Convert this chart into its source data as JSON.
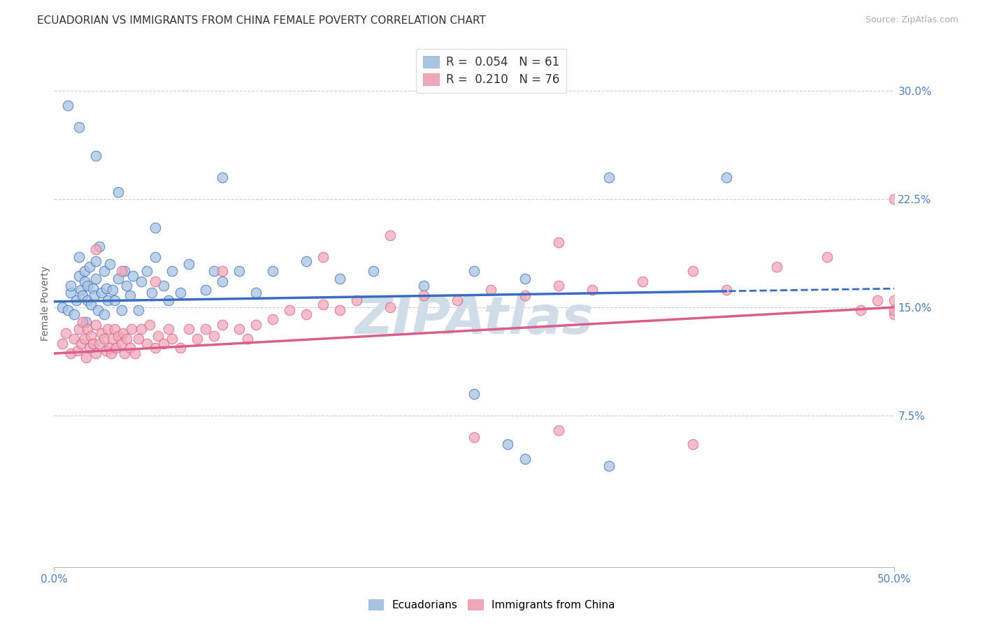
{
  "title": "ECUADORIAN VS IMMIGRANTS FROM CHINA FEMALE POVERTY CORRELATION CHART",
  "source": "Source: ZipAtlas.com",
  "ylabel": "Female Poverty",
  "xlim": [
    0.0,
    0.5
  ],
  "ylim": [
    -0.03,
    0.335
  ],
  "legend1_label": "R =  0.054   N = 61",
  "legend2_label": "R =  0.210   N = 76",
  "scatter_blue_color": "#a8c4e0",
  "scatter_pink_color": "#f0a8b8",
  "line_blue_color": "#3a6cbf",
  "line_pink_color": "#d95f8a",
  "watermark": "ZIPAtlas",
  "watermark_color": "#d0dce8",
  "background_color": "#ffffff",
  "grid_color": "#cccccc",
  "title_color": "#333333",
  "axis_label_color": "#5080c0",
  "ecuadorians_x": [
    0.005,
    0.008,
    0.01,
    0.01,
    0.012,
    0.013,
    0.015,
    0.015,
    0.016,
    0.017,
    0.018,
    0.018,
    0.019,
    0.02,
    0.02,
    0.021,
    0.022,
    0.023,
    0.024,
    0.025,
    0.025,
    0.026,
    0.027,
    0.028,
    0.03,
    0.03,
    0.031,
    0.032,
    0.033,
    0.035,
    0.036,
    0.038,
    0.04,
    0.042,
    0.043,
    0.045,
    0.047,
    0.05,
    0.052,
    0.055,
    0.058,
    0.06,
    0.065,
    0.068,
    0.07,
    0.075,
    0.08,
    0.09,
    0.095,
    0.1,
    0.11,
    0.12,
    0.13,
    0.15,
    0.17,
    0.19,
    0.22,
    0.25,
    0.28,
    0.33,
    0.4
  ],
  "ecuadorians_y": [
    0.15,
    0.148,
    0.16,
    0.165,
    0.145,
    0.155,
    0.172,
    0.185,
    0.162,
    0.158,
    0.168,
    0.175,
    0.14,
    0.155,
    0.165,
    0.178,
    0.152,
    0.163,
    0.158,
    0.17,
    0.182,
    0.148,
    0.192,
    0.16,
    0.145,
    0.175,
    0.163,
    0.155,
    0.18,
    0.162,
    0.155,
    0.17,
    0.148,
    0.175,
    0.165,
    0.158,
    0.172,
    0.148,
    0.168,
    0.175,
    0.16,
    0.185,
    0.165,
    0.155,
    0.175,
    0.16,
    0.18,
    0.162,
    0.175,
    0.168,
    0.175,
    0.16,
    0.175,
    0.182,
    0.17,
    0.175,
    0.165,
    0.175,
    0.17,
    0.24,
    0.24
  ],
  "ecuadorians_y_outliers": [
    0.29,
    0.275,
    0.255,
    0.23,
    0.205,
    0.24,
    0.09,
    0.055,
    0.045,
    0.04
  ],
  "ecuadorians_x_outliers": [
    0.008,
    0.015,
    0.025,
    0.038,
    0.06,
    0.1,
    0.25,
    0.27,
    0.28,
    0.33
  ],
  "china_x": [
    0.005,
    0.007,
    0.01,
    0.012,
    0.014,
    0.015,
    0.016,
    0.017,
    0.018,
    0.019,
    0.02,
    0.021,
    0.022,
    0.023,
    0.025,
    0.025,
    0.027,
    0.028,
    0.03,
    0.031,
    0.032,
    0.033,
    0.034,
    0.035,
    0.036,
    0.037,
    0.038,
    0.04,
    0.041,
    0.042,
    0.043,
    0.045,
    0.046,
    0.048,
    0.05,
    0.052,
    0.055,
    0.057,
    0.06,
    0.062,
    0.065,
    0.068,
    0.07,
    0.075,
    0.08,
    0.085,
    0.09,
    0.095,
    0.1,
    0.11,
    0.115,
    0.12,
    0.13,
    0.14,
    0.15,
    0.16,
    0.17,
    0.18,
    0.2,
    0.22,
    0.24,
    0.26,
    0.28,
    0.3,
    0.32,
    0.35,
    0.38,
    0.4,
    0.43,
    0.46,
    0.48,
    0.49,
    0.5,
    0.5,
    0.5,
    0.5
  ],
  "china_y": [
    0.125,
    0.132,
    0.118,
    0.128,
    0.12,
    0.135,
    0.125,
    0.14,
    0.128,
    0.115,
    0.135,
    0.122,
    0.13,
    0.125,
    0.118,
    0.138,
    0.125,
    0.132,
    0.128,
    0.12,
    0.135,
    0.122,
    0.118,
    0.128,
    0.135,
    0.122,
    0.13,
    0.125,
    0.132,
    0.118,
    0.128,
    0.122,
    0.135,
    0.118,
    0.128,
    0.135,
    0.125,
    0.138,
    0.122,
    0.13,
    0.125,
    0.135,
    0.128,
    0.122,
    0.135,
    0.128,
    0.135,
    0.13,
    0.138,
    0.135,
    0.128,
    0.138,
    0.142,
    0.148,
    0.145,
    0.152,
    0.148,
    0.155,
    0.15,
    0.158,
    0.155,
    0.162,
    0.158,
    0.165,
    0.162,
    0.168,
    0.175,
    0.162,
    0.178,
    0.185,
    0.148,
    0.155,
    0.225,
    0.145,
    0.155,
    0.148
  ],
  "china_y_outliers": [
    0.19,
    0.175,
    0.168,
    0.175,
    0.185,
    0.2,
    0.195,
    0.06,
    0.065,
    0.055
  ],
  "china_x_outliers": [
    0.025,
    0.04,
    0.06,
    0.1,
    0.16,
    0.2,
    0.3,
    0.25,
    0.3,
    0.38
  ]
}
